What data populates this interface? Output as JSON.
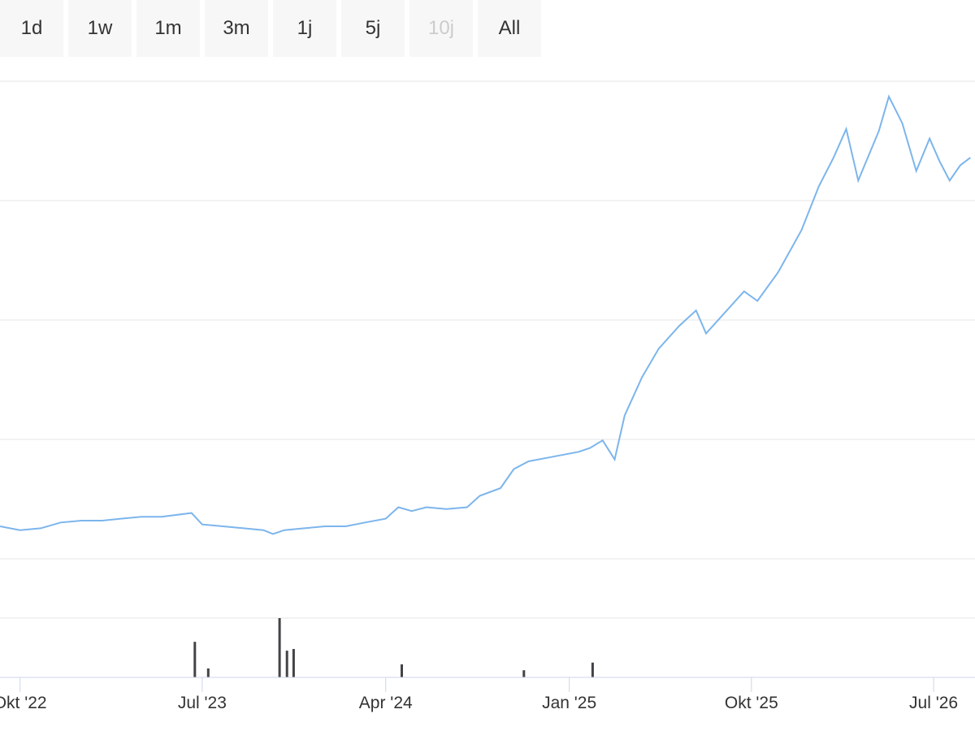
{
  "range_selector": [
    {
      "label": "1d",
      "disabled": false
    },
    {
      "label": "1w",
      "disabled": false
    },
    {
      "label": "1m",
      "disabled": false
    },
    {
      "label": "3m",
      "disabled": false
    },
    {
      "label": "1j",
      "disabled": false
    },
    {
      "label": "5j",
      "disabled": false
    },
    {
      "label": "10j",
      "disabled": true
    },
    {
      "label": "All",
      "disabled": false
    }
  ],
  "colors": {
    "line": "#7cb5ec",
    "volume": "#434348",
    "grid": "#e6e6e6",
    "axis": "#ccd6eb",
    "button_bg": "#f7f7f7"
  },
  "chart_data": {
    "type": "line",
    "x_ticks": [
      "Okt '22",
      "Jul '23",
      "Apr '24",
      "Jan '25",
      "Okt '25",
      "Jul '26"
    ],
    "x_range": [
      "2022-09-01",
      "2026-09-01"
    ],
    "grid": true,
    "legend": "none",
    "series": [
      {
        "type": "line",
        "points": [
          [
            "2022-09-01",
            0.17
          ],
          [
            "2022-10-01",
            0.15
          ],
          [
            "2022-11-01",
            0.16
          ],
          [
            "2022-12-01",
            0.19
          ],
          [
            "2023-01-01",
            0.2
          ],
          [
            "2023-02-01",
            0.2
          ],
          [
            "2023-03-01",
            0.21
          ],
          [
            "2023-04-01",
            0.22
          ],
          [
            "2023-05-01",
            0.22
          ],
          [
            "2023-06-15",
            0.24
          ],
          [
            "2023-07-01",
            0.18
          ],
          [
            "2023-08-01",
            0.17
          ],
          [
            "2023-09-01",
            0.16
          ],
          [
            "2023-10-01",
            0.15
          ],
          [
            "2023-10-15",
            0.13
          ],
          [
            "2023-11-01",
            0.15
          ],
          [
            "2023-12-01",
            0.16
          ],
          [
            "2024-01-01",
            0.17
          ],
          [
            "2024-02-01",
            0.17
          ],
          [
            "2024-03-01",
            0.19
          ],
          [
            "2024-04-01",
            0.21
          ],
          [
            "2024-04-20",
            0.27
          ],
          [
            "2024-05-10",
            0.25
          ],
          [
            "2024-06-01",
            0.27
          ],
          [
            "2024-07-01",
            0.26
          ],
          [
            "2024-08-01",
            0.27
          ],
          [
            "2024-08-20",
            0.33
          ],
          [
            "2024-09-20",
            0.37
          ],
          [
            "2024-10-10",
            0.47
          ],
          [
            "2024-11-01",
            0.51
          ],
          [
            "2024-12-01",
            0.53
          ],
          [
            "2025-01-15",
            0.56
          ],
          [
            "2025-02-01",
            0.58
          ],
          [
            "2025-02-20",
            0.62
          ],
          [
            "2025-03-10",
            0.52
          ],
          [
            "2025-03-25",
            0.75
          ],
          [
            "2025-04-20",
            0.95
          ],
          [
            "2025-05-15",
            1.1
          ],
          [
            "2025-06-15",
            1.22
          ],
          [
            "2025-07-10",
            1.3
          ],
          [
            "2025-07-25",
            1.18
          ],
          [
            "2025-08-20",
            1.28
          ],
          [
            "2025-09-20",
            1.4
          ],
          [
            "2025-10-10",
            1.35
          ],
          [
            "2025-11-10",
            1.5
          ],
          [
            "2025-12-15",
            1.72
          ],
          [
            "2026-01-10",
            1.95
          ],
          [
            "2026-02-01",
            2.1
          ],
          [
            "2026-02-20",
            2.25
          ],
          [
            "2026-03-10",
            1.98
          ],
          [
            "2026-04-10",
            2.24
          ],
          [
            "2026-04-25",
            2.42
          ],
          [
            "2026-05-15",
            2.28
          ],
          [
            "2026-06-05",
            2.03
          ],
          [
            "2026-06-25",
            2.2
          ],
          [
            "2026-07-10",
            2.08
          ],
          [
            "2026-07-25",
            1.98
          ],
          [
            "2026-08-10",
            2.06
          ],
          [
            "2026-08-25",
            2.1
          ]
        ]
      },
      {
        "type": "column",
        "points": [
          [
            "2023-06-20",
            0.6
          ],
          [
            "2023-07-10",
            0.15
          ],
          [
            "2023-10-25",
            1.0
          ],
          [
            "2023-11-05",
            0.45
          ],
          [
            "2023-11-15",
            0.48
          ],
          [
            "2024-04-25",
            0.22
          ],
          [
            "2024-10-25",
            0.12
          ],
          [
            "2025-02-05",
            0.25
          ]
        ]
      }
    ]
  }
}
